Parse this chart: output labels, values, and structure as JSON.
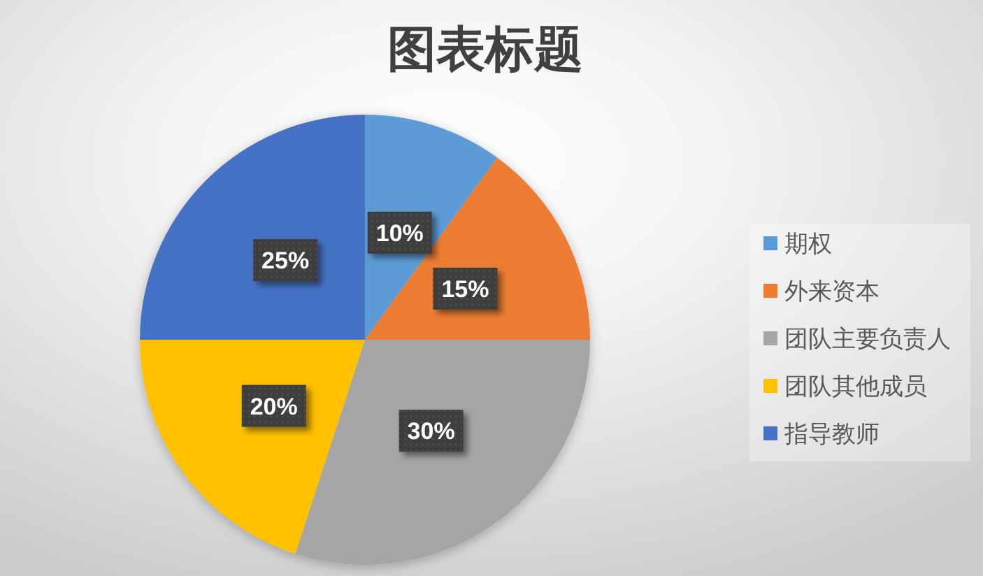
{
  "chart_data": {
    "type": "pie",
    "title": "图表标题",
    "categories": [
      "期权",
      "外来资本",
      "团队主要负责人",
      "团队其他成员",
      "指导教师"
    ],
    "values": [
      10,
      15,
      30,
      20,
      25
    ],
    "colors": [
      "#5b9bd5",
      "#ed7d31",
      "#a5a5a5",
      "#ffc000",
      "#4472c4"
    ],
    "value_labels": [
      "10%",
      "15%",
      "30%",
      "20%",
      "25%"
    ],
    "legend": "right"
  }
}
